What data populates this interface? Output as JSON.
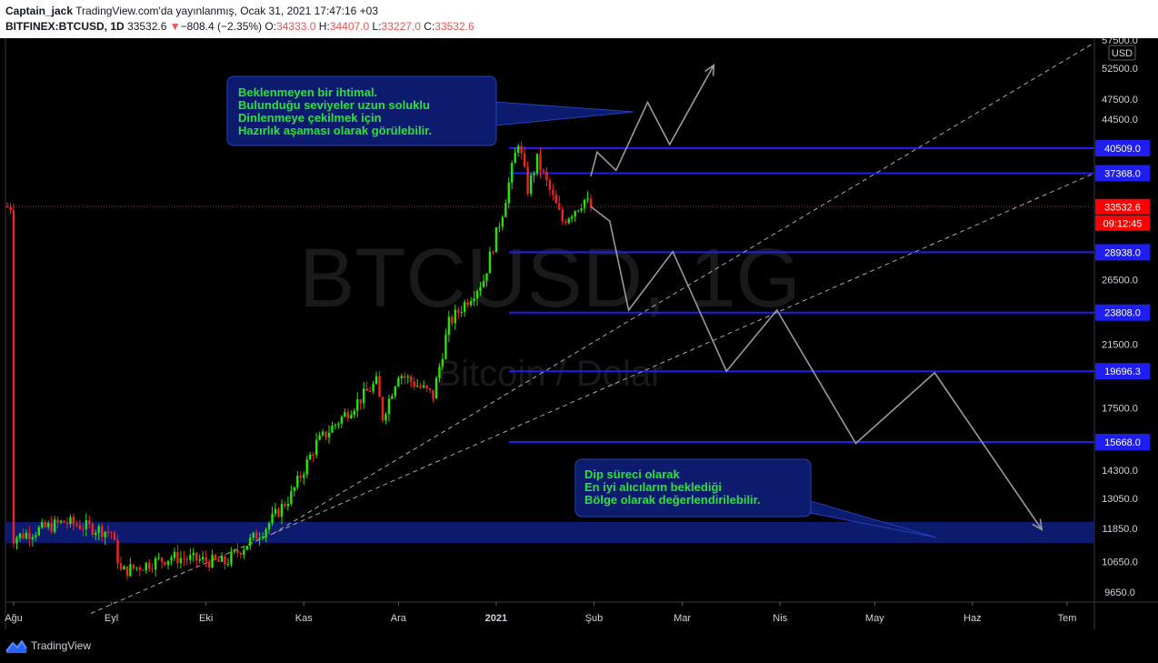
{
  "header": {
    "author": "Captain_jack",
    "published": "TradingView.com'da yayınlanmış, Ocak 31, 2021 17:47:16 +03",
    "symbol": "BITFINEX:BTCUSD, 1D",
    "last": "33532.6",
    "change": "−808.4 (−2.35%)",
    "o_label": "O:",
    "o": "34333.0",
    "h_label": "H:",
    "h": "34407.0",
    "l_label": "L:",
    "l": "33227.0",
    "c_label": "C:",
    "c": "33532.6",
    "down_color": "#ef5350"
  },
  "footer": {
    "brand": "TradingView"
  },
  "watermark": {
    "symbol": "BTCUSD, 1G",
    "name": "Bitcoin / Dolar"
  },
  "callouts": [
    {
      "lines": [
        "Beklenmeyen bir ihtimal.",
        "Bulunduğu seviyeler uzun soluklu",
        "Dinlenmeye çekilmek için",
        "Hazırlık aşaması olarak görülebilir."
      ]
    },
    {
      "lines": [
        "Dip süreci olarak",
        "En iyi alıcıların beklediği",
        "Bölge olarak değerlendirilebilir."
      ]
    }
  ],
  "chart_data": {
    "type": "candlestick",
    "currency": "USD",
    "scale": "log",
    "y_range": [
      9000,
      58000
    ],
    "x_ticks": [
      "Ağu",
      "Eyl",
      "Eki",
      "Kas",
      "Ara",
      "2021",
      "Şub",
      "Mar",
      "Nis",
      "May",
      "Haz",
      "Tem"
    ],
    "y_ticks": [
      57500.0,
      52500.0,
      47500.0,
      44500.0,
      26500.0,
      21500.0,
      17500.0,
      14300.0,
      13050.0,
      11850.0,
      10650.0,
      9650.0
    ],
    "horizontal_levels": [
      {
        "label": "40509.0",
        "value": 40509.0,
        "color": "#1e1ef0"
      },
      {
        "label": "37368.0",
        "value": 37368.0,
        "color": "#1e1ef0"
      },
      {
        "label": "28938.0",
        "value": 28938.0,
        "color": "#1e1ef0"
      },
      {
        "label": "23808.0",
        "value": 23808.0,
        "color": "#1e1ef0"
      },
      {
        "label": "19696.3",
        "value": 19696.3,
        "color": "#1e1ef0"
      },
      {
        "label": "15668.0",
        "value": 15668.0,
        "color": "#1e1ef0"
      }
    ],
    "current_price": {
      "label": "33532.6",
      "value": 33532.6,
      "countdown": "09:12:45",
      "color": "#ff0000"
    },
    "support_zone": {
      "from": 11300,
      "to": 12100,
      "color": "#0d1b6e"
    },
    "up_color": "#26e600",
    "down_color": "#ef2525",
    "price_path": [
      {
        "x": "2020-08-01",
        "close": 11500
      },
      {
        "x": "2020-08-17",
        "close": 12100
      },
      {
        "x": "2020-09-01",
        "close": 11700
      },
      {
        "x": "2020-09-04",
        "close": 10300
      },
      {
        "x": "2020-09-20",
        "close": 10800
      },
      {
        "x": "2020-10-07",
        "close": 10600
      },
      {
        "x": "2020-10-20",
        "close": 11900
      },
      {
        "x": "2020-10-28",
        "close": 13200
      },
      {
        "x": "2020-11-05",
        "close": 15600
      },
      {
        "x": "2020-11-24",
        "close": 19000
      },
      {
        "x": "2020-11-26",
        "close": 17000
      },
      {
        "x": "2020-12-01",
        "close": 19600
      },
      {
        "x": "2020-12-12",
        "close": 18200
      },
      {
        "x": "2020-12-17",
        "close": 23000
      },
      {
        "x": "2020-12-28",
        "close": 26500
      },
      {
        "x": "2021-01-03",
        "close": 33000
      },
      {
        "x": "2021-01-08",
        "close": 41500
      },
      {
        "x": "2021-01-11",
        "close": 35500
      },
      {
        "x": "2021-01-14",
        "close": 39000
      },
      {
        "x": "2021-01-22",
        "close": 32000
      },
      {
        "x": "2021-01-29",
        "close": 34300
      },
      {
        "x": "2021-01-31",
        "close": 33532.6
      }
    ],
    "projection_path": [
      {
        "x": "2021-01-31",
        "y": 33532.6
      },
      {
        "x": "2021-02-06",
        "y": 32000
      },
      {
        "x": "2021-02-12",
        "y": 24000
      },
      {
        "x": "2021-02-26",
        "y": 29000
      },
      {
        "x": "2021-03-15",
        "y": 19700
      },
      {
        "x": "2021-03-31",
        "y": 24000
      },
      {
        "x": "2021-04-25",
        "y": 15600
      },
      {
        "x": "2021-05-20",
        "y": 19600
      },
      {
        "x": "2021-06-23",
        "y": 11800
      }
    ],
    "alt_projection_path": [
      {
        "x": "2021-01-31",
        "y": 37000
      },
      {
        "x": "2021-02-02",
        "y": 40000
      },
      {
        "x": "2021-02-08",
        "y": 37700
      },
      {
        "x": "2021-02-18",
        "y": 47000
      },
      {
        "x": "2021-02-25",
        "y": 41000
      },
      {
        "x": "2021-03-11",
        "y": 53000
      }
    ]
  }
}
